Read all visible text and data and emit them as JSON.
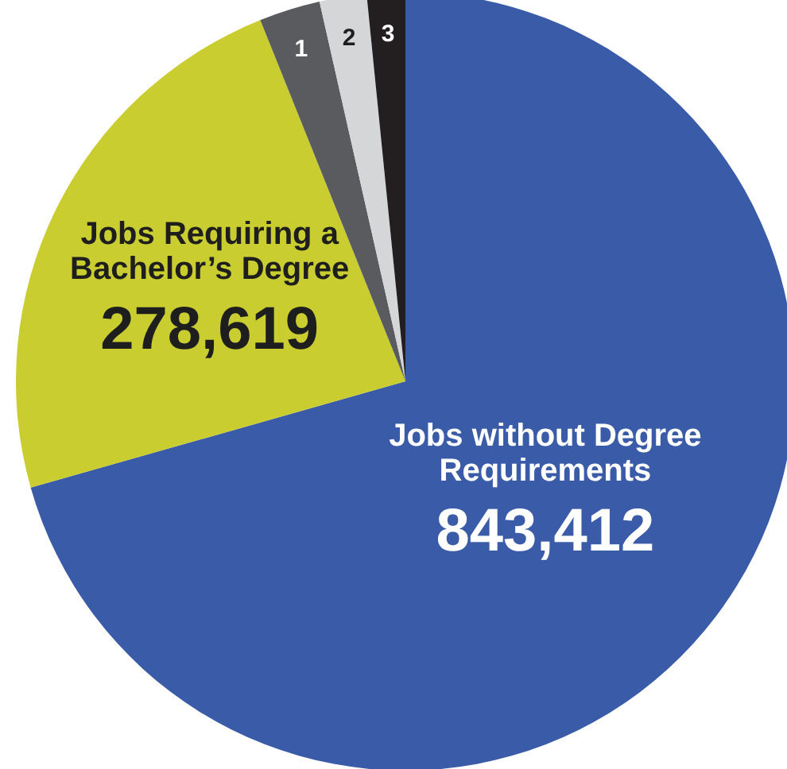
{
  "chart_data": {
    "type": "pie",
    "categories": [
      "Jobs without Degree Requirements",
      "Jobs Requiring a Bachelor’s Degree",
      "1",
      "2",
      "3"
    ],
    "values": [
      843412,
      278619,
      30300,
      23300,
      19000
    ],
    "value_labels": [
      "843,412",
      "278,619",
      null,
      null,
      null
    ],
    "colors": [
      "#3a5ba8",
      "#c9cd2f",
      "#5a5b5e",
      "#d5d6d8",
      "#231f20"
    ],
    "legend": false
  }
}
